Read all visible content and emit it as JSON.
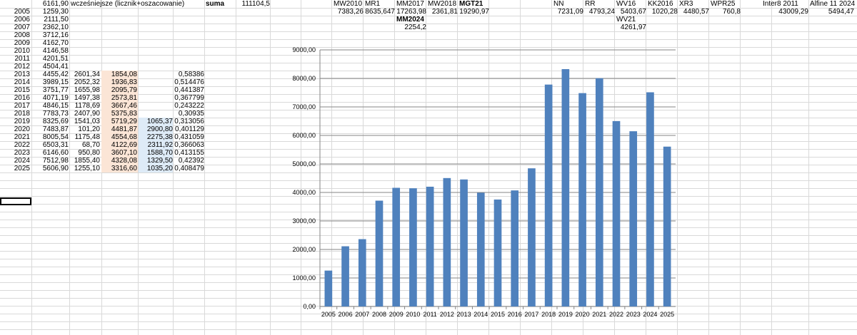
{
  "header_row": {
    "a": "6161,90",
    "label": "wcześniejsze (licznik+oszacowanie)",
    "suma_label": "suma",
    "suma_value": "111104,5"
  },
  "models": [
    {
      "name": "MW2010",
      "value": "7383,26"
    },
    {
      "name": "MR1",
      "value": "8635,647"
    },
    {
      "name": "MM2017",
      "value": "17263,98"
    },
    {
      "name": "MW2018",
      "value": "2361,81"
    },
    {
      "name": "MGT21",
      "value": "19290,97"
    },
    {
      "name": "NN",
      "value": "7231,09"
    },
    {
      "name": "RR",
      "value": "4793,24"
    },
    {
      "name": "WV16",
      "value": "5403,67"
    },
    {
      "name": "KK2016",
      "value": "1020,28"
    },
    {
      "name": "XR3",
      "value": "4480,57"
    },
    {
      "name": "WPR25",
      "value": "760,8"
    },
    {
      "name": "Inter8 2011",
      "value": "43009,29"
    },
    {
      "name": "Alfine 11 2024",
      "value": "5494,47"
    }
  ],
  "extra_models": [
    {
      "name": "MM2024",
      "value": "2254,2"
    },
    {
      "name": "WV21",
      "value": "4261,97"
    }
  ],
  "rows": [
    {
      "year": "2005",
      "total": "1259,30",
      "c": "",
      "d": "",
      "e": "",
      "f": ""
    },
    {
      "year": "2006",
      "total": "2111,50",
      "c": "",
      "d": "",
      "e": "",
      "f": ""
    },
    {
      "year": "2007",
      "total": "2362,10",
      "c": "",
      "d": "",
      "e": "",
      "f": ""
    },
    {
      "year": "2008",
      "total": "3712,16",
      "c": "",
      "d": "",
      "e": "",
      "f": ""
    },
    {
      "year": "2009",
      "total": "4162,70",
      "c": "",
      "d": "",
      "e": "",
      "f": ""
    },
    {
      "year": "2010",
      "total": "4146,58",
      "c": "",
      "d": "",
      "e": "",
      "f": ""
    },
    {
      "year": "2011",
      "total": "4201,51",
      "c": "",
      "d": "",
      "e": "",
      "f": ""
    },
    {
      "year": "2012",
      "total": "4504,41",
      "c": "",
      "d": "",
      "e": "",
      "f": ""
    },
    {
      "year": "2013",
      "total": "4455,42",
      "c": "2601,34",
      "d": "1854,08",
      "e": "",
      "f": "0,58386"
    },
    {
      "year": "2014",
      "total": "3989,15",
      "c": "2052,32",
      "d": "1936,83",
      "e": "",
      "f": "0,514476"
    },
    {
      "year": "2015",
      "total": "3751,77",
      "c": "1655,98",
      "d": "2095,79",
      "e": "",
      "f": "0,441387"
    },
    {
      "year": "2016",
      "total": "4071,19",
      "c": "1497,38",
      "d": "2573,81",
      "e": "",
      "f": "0,367799"
    },
    {
      "year": "2017",
      "total": "4846,15",
      "c": "1178,69",
      "d": "3667,46",
      "e": "",
      "f": "0,243222"
    },
    {
      "year": "2018",
      "total": "7783,73",
      "c": "2407,90",
      "d": "5375,83",
      "e": "",
      "f": "0,30935"
    },
    {
      "year": "2019",
      "total": "8325,69",
      "c": "1541,03",
      "d": "5719,29",
      "e": "1065,37",
      "f": "0,313056"
    },
    {
      "year": "2020",
      "total": "7483,87",
      "c": "101,20",
      "d": "4481,87",
      "e": "2900,80",
      "f": "0,401129"
    },
    {
      "year": "2021",
      "total": "8005,54",
      "c": "1175,48",
      "d": "4554,68",
      "e": "2275,38",
      "f": "0,431059"
    },
    {
      "year": "2022",
      "total": "6503,31",
      "c": "68,70",
      "d": "4122,69",
      "e": "2311,92",
      "f": "0,366063"
    },
    {
      "year": "2023",
      "total": "6146,60",
      "c": "950,80",
      "d": "3607,10",
      "e": "1588,70",
      "f": "0,413155"
    },
    {
      "year": "2024",
      "total": "7512,98",
      "c": "1855,40",
      "d": "4328,08",
      "e": "1329,50",
      "f": "0,42392"
    },
    {
      "year": "2025",
      "total": "5606,90",
      "c": "1255,10",
      "d": "3316,60",
      "e": "1035,20",
      "f": "0,408479"
    }
  ],
  "chart_data": {
    "type": "bar",
    "categories": [
      "2005",
      "2006",
      "2007",
      "2008",
      "2009",
      "2010",
      "2011",
      "2012",
      "2013",
      "2014",
      "2015",
      "2016",
      "2017",
      "2018",
      "2019",
      "2020",
      "2021",
      "2022",
      "2023",
      "2024",
      "2025"
    ],
    "values": [
      1259.3,
      2111.5,
      2362.1,
      3712.16,
      4162.7,
      4146.58,
      4201.51,
      4504.41,
      4455.42,
      3989.15,
      3751.77,
      4071.19,
      4846.15,
      7783.73,
      8325.69,
      7483.87,
      8005.54,
      6503.31,
      6146.6,
      7512.98,
      5606.9
    ],
    "ylim": [
      0,
      9000
    ],
    "yticks": [
      "0,00",
      "1000,00",
      "2000,00",
      "3000,00",
      "4000,00",
      "5000,00",
      "6000,00",
      "7000,00",
      "8000,00",
      "9000,00"
    ],
    "grid": true,
    "bar_color": "#4f81bd"
  }
}
